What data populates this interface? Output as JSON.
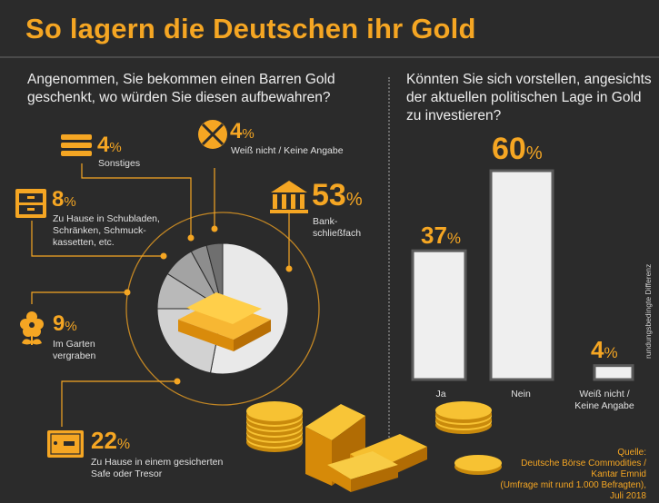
{
  "title": "So lagern die Deutschen ihr Gold",
  "left_question": "Angenommen, Sie bekommen einen Barren Gold geschenkt, wo würden Sie diesen aufbewahren?",
  "right_question": "Könnten Sie sich vorstellen, angesichts der aktuellen politischen Lage in Gold zu investieren?",
  "side_note": "rundungsbedingte Differenz",
  "source": [
    "Quelle:",
    "Deutsche Börse Commodities /",
    "Kantar Emnid",
    "(Umfrage mit rund 1.000 Befragten),",
    "Juli 2018"
  ],
  "colors": {
    "accent": "#f5a623",
    "background": "#2b2b2b",
    "bar": "#efefef"
  },
  "chart_data": [
    {
      "type": "pie",
      "categories": [
        "Bankschließfach",
        "Zu Hause in einem gesicherten Safe oder Tresor",
        "Im Garten vergraben",
        "Zu Hause in Schubladen, Schränken, Schmuckkassetten, etc.",
        "Sonstiges",
        "Weiß nicht / Keine Angabe"
      ],
      "values": [
        53,
        22,
        9,
        8,
        4,
        4
      ],
      "labels": {
        "bank": {
          "num": "53",
          "text": "Bank-\nschließfach",
          "icon": "bank-icon"
        },
        "safe": {
          "num": "22",
          "text": "Zu Hause in einem gesicherten\nSafe oder Tresor",
          "icon": "safe-icon"
        },
        "garden": {
          "num": "9",
          "text": "Im Garten\nvergraben",
          "icon": "flower-icon"
        },
        "drawer": {
          "num": "8",
          "text": "Zu Hause in Schubladen,\nSchränken, Schmuck-\nkassetten, etc.",
          "icon": "drawer-icon"
        },
        "other": {
          "num": "4",
          "text": "Sonstiges",
          "icon": "list-icon"
        },
        "unknown": {
          "num": "4",
          "text": "Weiß nicht / Keine Angabe",
          "icon": "cross-icon"
        }
      },
      "unit": "%"
    },
    {
      "type": "bar",
      "categories": [
        "Ja",
        "Nein",
        "Weiß nicht /\nKeine Angabe"
      ],
      "values": [
        37,
        60,
        4
      ],
      "unit": "%"
    }
  ]
}
